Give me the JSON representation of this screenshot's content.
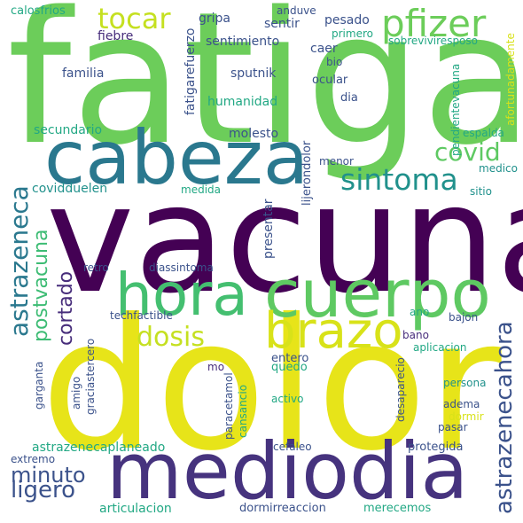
{
  "words": [
    {
      "text": "fatiga",
      "color": "#6ccd5a"
    },
    {
      "text": "vacuna",
      "color": "#440154"
    },
    {
      "text": "dolor",
      "color": "#e7e419"
    },
    {
      "text": "cabeza",
      "color": "#2a788e"
    },
    {
      "text": "mediodia",
      "color": "#46337e"
    },
    {
      "text": "hora",
      "color": "#44bf70"
    },
    {
      "text": "cuerpo",
      "color": "#5ec962"
    },
    {
      "text": "pfizer",
      "color": "#6ccd5a"
    },
    {
      "text": "brazo",
      "color": "#d8e219"
    },
    {
      "text": "tocar",
      "color": "#c5e021"
    },
    {
      "text": "sintoma",
      "color": "#21918c"
    },
    {
      "text": "dosis",
      "color": "#c5e021"
    },
    {
      "text": "covid",
      "color": "#5ec962"
    },
    {
      "text": "astrazeneca",
      "color": "#2a788e"
    },
    {
      "text": "astrazenecahora",
      "color": "#3b528b"
    },
    {
      "text": "postvacuna",
      "color": "#3dbc74"
    },
    {
      "text": "cortado",
      "color": "#472d7b"
    },
    {
      "text": "minuto",
      "color": "#3b528b"
    },
    {
      "text": "ligero",
      "color": "#3b528b"
    },
    {
      "text": "calosfrios",
      "color": "#22a884"
    },
    {
      "text": "anduve",
      "color": "#3b528b"
    },
    {
      "text": "gripa",
      "color": "#3b528b"
    },
    {
      "text": "sentir",
      "color": "#3b528b"
    },
    {
      "text": "pesado",
      "color": "#3b528b"
    },
    {
      "text": "fiebre",
      "color": "#472d7b"
    },
    {
      "text": "sentimiento",
      "color": "#3b528b"
    },
    {
      "text": "familia",
      "color": "#3b528b"
    },
    {
      "text": "fatigarefuerzo",
      "color": "#3b528b"
    },
    {
      "text": "sputnik",
      "color": "#3b528b"
    },
    {
      "text": "caer",
      "color": "#3b528b"
    },
    {
      "text": "bio",
      "color": "#3b528b"
    },
    {
      "text": "ocular",
      "color": "#3b528b"
    },
    {
      "text": "humanidad",
      "color": "#22a884"
    },
    {
      "text": "dia",
      "color": "#3b528b"
    },
    {
      "text": "primero",
      "color": "#22a884"
    },
    {
      "text": "sobreviviresposo",
      "color": "#22a884"
    },
    {
      "text": "pendientevacuna",
      "color": "#22a884"
    },
    {
      "text": "afortunadamente",
      "color": "#d8e219"
    },
    {
      "text": "secundario",
      "color": "#22a884"
    },
    {
      "text": "molesto",
      "color": "#3b528b"
    },
    {
      "text": "espalda",
      "color": "#22a884"
    },
    {
      "text": "lijerondolor",
      "color": "#3b528b"
    },
    {
      "text": "menor",
      "color": "#3b528b"
    },
    {
      "text": "medico",
      "color": "#21918c"
    },
    {
      "text": "covidduelen",
      "color": "#21918c"
    },
    {
      "text": "medida",
      "color": "#22a884"
    },
    {
      "text": "sitio",
      "color": "#21918c"
    },
    {
      "text": "presentar",
      "color": "#3b528b"
    },
    {
      "text": "retro",
      "color": "#3b528b"
    },
    {
      "text": "diassintoma",
      "color": "#3b528b"
    },
    {
      "text": "techfactible",
      "color": "#3b528b"
    },
    {
      "text": "ano",
      "color": "#22a884"
    },
    {
      "text": "bajon",
      "color": "#3b528b"
    },
    {
      "text": "bano",
      "color": "#472d7b"
    },
    {
      "text": "aplicacion",
      "color": "#22a884"
    },
    {
      "text": "graciastercero",
      "color": "#3b528b"
    },
    {
      "text": "entero",
      "color": "#3b528b"
    },
    {
      "text": "quedo",
      "color": "#22a884"
    },
    {
      "text": "mo",
      "color": "#472d7b"
    },
    {
      "text": "paracetamol",
      "color": "#3b528b"
    },
    {
      "text": "cansancio",
      "color": "#22a884"
    },
    {
      "text": "garganta",
      "color": "#3b528b"
    },
    {
      "text": "amigo",
      "color": "#3b528b"
    },
    {
      "text": "desaparecio",
      "color": "#3b528b"
    },
    {
      "text": "persona",
      "color": "#21918c"
    },
    {
      "text": "activo",
      "color": "#22a884"
    },
    {
      "text": "adema",
      "color": "#3b528b"
    },
    {
      "text": "dormir",
      "color": "#d8e219"
    },
    {
      "text": "pasar",
      "color": "#3b528b"
    },
    {
      "text": "astrazenecaplaneado",
      "color": "#22a884"
    },
    {
      "text": "cefaleo",
      "color": "#3b528b"
    },
    {
      "text": "protegida",
      "color": "#3b528b"
    },
    {
      "text": "extremo",
      "color": "#3b528b"
    },
    {
      "text": "articulacion",
      "color": "#22a884"
    },
    {
      "text": "dormirreaccion",
      "color": "#3b528b"
    },
    {
      "text": "merecemos",
      "color": "#22a884"
    }
  ]
}
